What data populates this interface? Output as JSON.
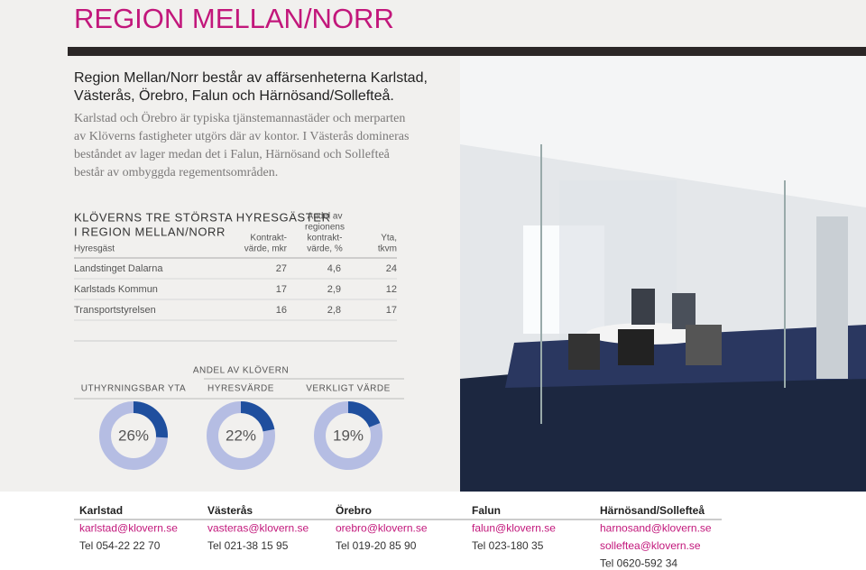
{
  "header": {
    "title": "REGION MELLAN/NORR"
  },
  "intro": {
    "lead_lines": [
      "Region Mellan/Norr består av affärsenheterna Karlstad,",
      "Västerås, Örebro, Falun och Härnösand/Sollefteå."
    ],
    "body_lines": [
      "Karlstad och Örebro är typiska tjänstemannastäder och merparten",
      "av Klöverns fastigheter utgörs där av kontor. I Västerås domineras",
      "beståndet av lager medan det i Falun, Härnösand och Sollefteå",
      "består av ombyggda regementsområden."
    ]
  },
  "table": {
    "title_lines": [
      "KLÖVERNS TRE STÖRSTA HYRESGÄSTER",
      "I REGION MELLAN/NORR"
    ],
    "columns": [
      [
        "Hyresgäst"
      ],
      [
        "Kontrakt-",
        "värde, mkr"
      ],
      [
        "Andel av",
        "regionens",
        "kontrakt-",
        "värde, %"
      ],
      [
        "Yta,",
        "tkvm"
      ]
    ],
    "rows": [
      [
        "Landstinget Dalarna",
        "27",
        "4,6",
        "24"
      ],
      [
        "Karlstads Kommun",
        "17",
        "2,9",
        "12"
      ],
      [
        "Transportstyrelsen",
        "16",
        "2,8",
        "17"
      ]
    ]
  },
  "donuts": {
    "heading": "ANDEL AV KLÖVERN",
    "items": [
      {
        "label": "UTHYRNINGSBAR YTA",
        "value": 26,
        "value_label": "26%"
      },
      {
        "label": "HYRESVÄRDE",
        "value": 22,
        "value_label": "22%"
      },
      {
        "label": "VERKLIGT VÄRDE",
        "value": 19,
        "value_label": "19%"
      }
    ]
  },
  "contacts": [
    [
      "Karlstad",
      "karlstad@klovern.se",
      "Tel 054-22 22 70"
    ],
    [
      "Västerås",
      "vasteras@klovern.se",
      "Tel 021-38 15 95"
    ],
    [
      "Örebro",
      "orebro@klovern.se",
      "Tel 019-20 85 90"
    ],
    [
      "Falun",
      "falun@klovern.se",
      "Tel 023-180 35"
    ],
    [
      "Härnösand/Sollefteå",
      "harnosand@klovern.se",
      "sollefteа@klovern.se",
      "Tel 0620-592 34"
    ]
  ]
}
